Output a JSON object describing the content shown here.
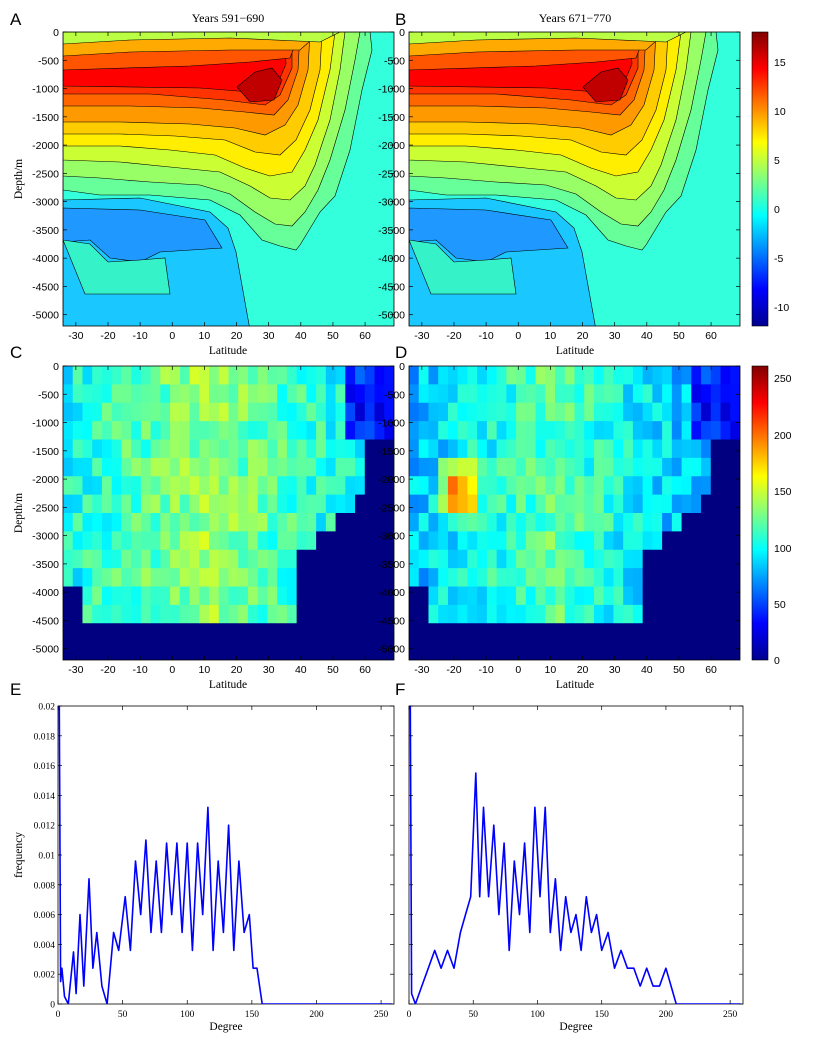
{
  "chart_data": [
    {
      "panel": "A",
      "type": "heatmap",
      "subtype": "filled-contour",
      "title": "Years 591−690",
      "xlabel": "Latitude",
      "ylabel": "Depth/m",
      "xlim": [
        -34,
        69
      ],
      "ylim": [
        -5200,
        0
      ],
      "xticks": [
        "-30",
        "-20",
        "-10",
        "0",
        "10",
        "20",
        "30",
        "40",
        "50",
        "60"
      ],
      "yticks": [
        "0",
        "-500",
        "-1000",
        "-1500",
        "-2000",
        "-2500",
        "-3000",
        "-3500",
        "-4000",
        "-4500",
        "-5000"
      ],
      "max_region": {
        "lat": 27,
        "depth": -1000,
        "value": 17
      },
      "min_region": {
        "lat": -15,
        "depth": -3600,
        "value": -5
      }
    },
    {
      "panel": "B",
      "type": "heatmap",
      "subtype": "filled-contour",
      "title": "Years 671−770",
      "xlabel": "Latitude",
      "xlim": [
        -34,
        69
      ],
      "ylim": [
        -5200,
        0
      ],
      "xticks": [
        "-30",
        "-20",
        "-10",
        "0",
        "10",
        "20",
        "30",
        "40",
        "50",
        "60"
      ],
      "max_region": {
        "lat": 27,
        "depth": -1000,
        "value": 17
      },
      "min_region": {
        "lat": -15,
        "depth": -3600,
        "value": -4
      }
    },
    {
      "panel": "colorbar-top",
      "type": "heatmap",
      "subtype": "colorbar",
      "range": [
        -12,
        18
      ],
      "ticks": [
        "15",
        "10",
        "5",
        "0",
        "-5",
        "-10"
      ],
      "colormap": "jet"
    },
    {
      "panel": "C",
      "type": "heatmap",
      "xlabel": "Latitude",
      "ylabel": "Depth/m",
      "xlim": [
        -34,
        69
      ],
      "ylim": [
        -5200,
        0
      ],
      "xticks": [
        "-30",
        "-20",
        "-10",
        "0",
        "10",
        "20",
        "30",
        "40",
        "50",
        "60"
      ],
      "yticks": [
        "0",
        "-500",
        "-1000",
        "-1500",
        "-2000",
        "-2500",
        "-3000",
        "-3500",
        "-4000",
        "-4500",
        "-5000"
      ],
      "typical_interior_value": 130,
      "seafloor_value": 0
    },
    {
      "panel": "D",
      "type": "heatmap",
      "xlabel": "Latitude",
      "xlim": [
        -34,
        69
      ],
      "ylim": [
        -5200,
        0
      ],
      "xticks": [
        "-30",
        "-20",
        "-10",
        "0",
        "10",
        "20",
        "30",
        "40",
        "50",
        "60"
      ],
      "max_region": {
        "lat": -18,
        "depth": -2200,
        "value": 205
      },
      "seafloor_value": 0
    },
    {
      "panel": "colorbar-bottom",
      "type": "heatmap",
      "subtype": "colorbar",
      "range": [
        0,
        260
      ],
      "ticks": [
        "250",
        "200",
        "150",
        "100",
        "50",
        "0"
      ],
      "colormap": "jet"
    },
    {
      "panel": "E",
      "type": "line",
      "xlabel": "Degree",
      "ylabel": "frequency",
      "xlim": [
        0,
        260
      ],
      "ylim": [
        0,
        0.02
      ],
      "xticks": [
        "0",
        "50",
        "100",
        "150",
        "200",
        "250"
      ],
      "yticks": [
        "0",
        "0.002",
        "0.004",
        "0.006",
        "0.008",
        "0.01",
        "0.012",
        "0.014",
        "0.016",
        "0.018",
        "0.02"
      ],
      "color": "#0000ff",
      "x": [
        1,
        2,
        3,
        5,
        8,
        12,
        14,
        17,
        20,
        24,
        27,
        30,
        34,
        38,
        43,
        47,
        52,
        56,
        60,
        64,
        68,
        72,
        76,
        80,
        84,
        88,
        92,
        96,
        100,
        104,
        108,
        112,
        116,
        120,
        124,
        128,
        132,
        136,
        140,
        144,
        148,
        151,
        154,
        156,
        158,
        160,
        258
      ],
      "y": [
        0.02,
        0.0015,
        0.0024,
        0.0005,
        0,
        0.0035,
        0.0007,
        0.006,
        0.0012,
        0.0084,
        0.0024,
        0.0048,
        0.0012,
        0.0,
        0.0048,
        0.0036,
        0.0072,
        0.0036,
        0.0096,
        0.006,
        0.011,
        0.0048,
        0.0096,
        0.0048,
        0.0108,
        0.006,
        0.0108,
        0.0048,
        0.0108,
        0.0036,
        0.0108,
        0.006,
        0.0132,
        0.0036,
        0.0096,
        0.0048,
        0.012,
        0.0036,
        0.0096,
        0.0048,
        0.006,
        0.0024,
        0.0024,
        0.0012,
        0.0,
        0.0,
        0.0
      ]
    },
    {
      "panel": "F",
      "type": "line",
      "xlabel": "Degree",
      "xlim": [
        0,
        260
      ],
      "ylim": [
        0,
        0.02
      ],
      "xticks": [
        "0",
        "50",
        "100",
        "150",
        "200",
        "250"
      ],
      "color": "#0000ff",
      "x": [
        1,
        2,
        5,
        10,
        15,
        20,
        25,
        30,
        35,
        40,
        44,
        48,
        52,
        55,
        58,
        62,
        66,
        70,
        74,
        78,
        82,
        86,
        90,
        94,
        98,
        102,
        106,
        110,
        114,
        118,
        122,
        126,
        130,
        134,
        138,
        142,
        146,
        150,
        155,
        160,
        165,
        170,
        175,
        180,
        185,
        190,
        195,
        200,
        204,
        208,
        258
      ],
      "y": [
        0.02,
        0.0007,
        0.0,
        0.0012,
        0.0024,
        0.0036,
        0.0024,
        0.0036,
        0.0024,
        0.0048,
        0.006,
        0.0072,
        0.0155,
        0.0072,
        0.0132,
        0.0072,
        0.012,
        0.006,
        0.0108,
        0.0036,
        0.0096,
        0.006,
        0.0108,
        0.0048,
        0.0132,
        0.0072,
        0.0132,
        0.0048,
        0.0084,
        0.0036,
        0.0072,
        0.0048,
        0.006,
        0.0036,
        0.0072,
        0.0048,
        0.006,
        0.0036,
        0.0048,
        0.0024,
        0.0036,
        0.0024,
        0.0024,
        0.0012,
        0.0024,
        0.0012,
        0.0012,
        0.0024,
        0.0012,
        0.0,
        0.0
      ]
    }
  ]
}
